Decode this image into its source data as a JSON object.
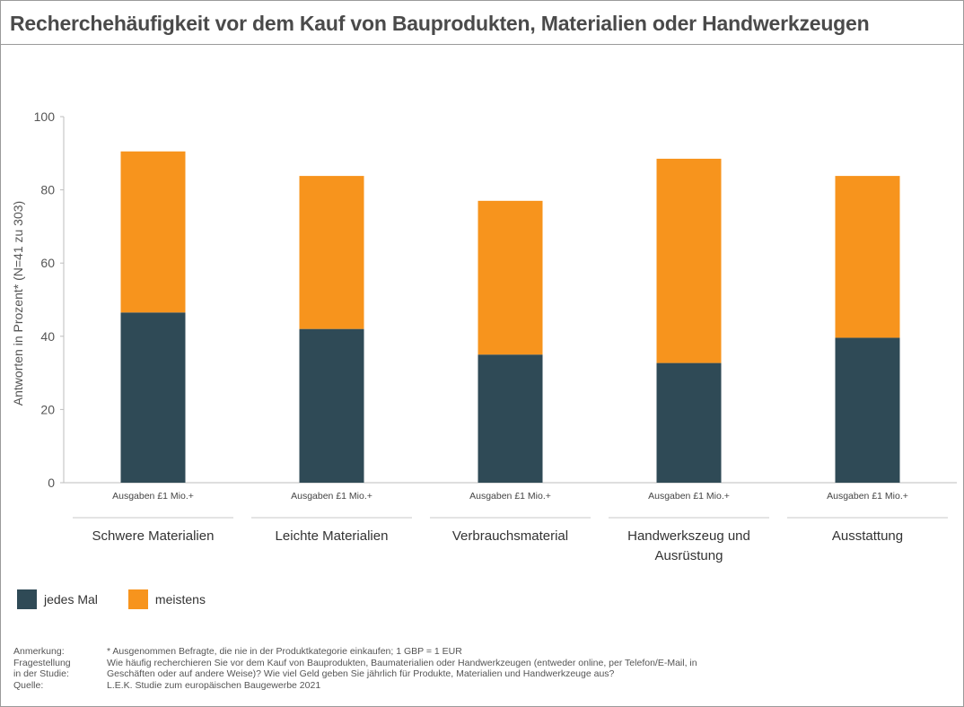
{
  "title": "Recherchehäufigkeit  vor dem Kauf von Bauprodukten,  Materialien oder Handwerkzeugen",
  "colors": {
    "jedes_mal": "#2f4a56",
    "meistens": "#f7941d"
  },
  "chart_data": {
    "type": "bar",
    "stacked": true,
    "categories": [
      "Schwere Materialien",
      "Leichte Materialien",
      "Verbrauchsmaterial",
      "Handwerkszeug und Ausrüstung",
      "Ausstattung"
    ],
    "category_lines": [
      [
        "Schwere Materialien"
      ],
      [
        "Leichte Materialien"
      ],
      [
        "Verbrauchsmaterial"
      ],
      [
        "Handwerkszeug und",
        "Ausrüstung"
      ],
      [
        "Ausstattung"
      ]
    ],
    "sub_label": "Ausgaben £1 Mio.+",
    "series": [
      {
        "name": "jedes Mal",
        "values": [
          46.5,
          42,
          35,
          32.7,
          39.6
        ]
      },
      {
        "name": "meistens",
        "values": [
          44,
          41.8,
          42,
          55.8,
          44.2
        ]
      }
    ],
    "ylabel": "Antworten in Prozent* (N=41 zu 303)",
    "ylim": [
      0,
      100
    ],
    "yticks": [
      0,
      20,
      40,
      60,
      80,
      100
    ],
    "legend_position": "bottom-left"
  },
  "legend": {
    "item1": "jedes Mal",
    "item2": "meistens"
  },
  "notes": {
    "anmerkung_label": "Anmerkung:",
    "anmerkung_text": "* Ausgenommen Befragte, die nie in der Produktkategorie einkaufen; 1 GBP = 1 EUR",
    "fragestellung_label1": "Fragestellung",
    "fragestellung_label2": "in der Studie:",
    "fragestellung_text1": "Wie häufig recherchieren Sie vor dem Kauf von Bauprodukten,  Baumaterialien oder Handwerkzeugen (entweder online, per Telefon/E-Mail, in",
    "fragestellung_text2": "Geschäften oder auf andere Weise)? Wie viel Geld geben Sie jährlich für Produkte,  Materialien und Handwerkzeuge aus?",
    "quelle_label": "Quelle:",
    "quelle_text": "L.E.K. Studie  zum europäischen Baugewerbe 2021"
  }
}
